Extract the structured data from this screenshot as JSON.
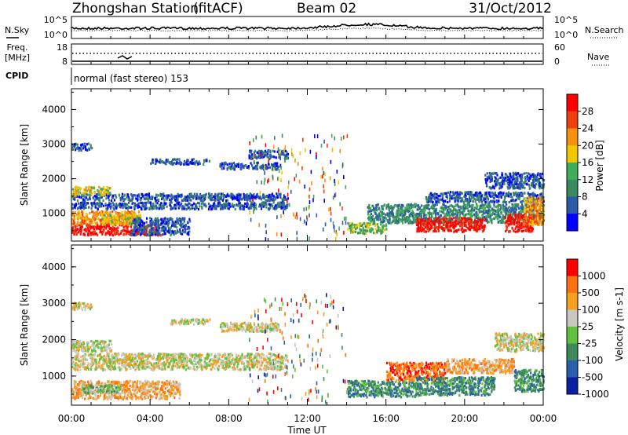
{
  "header": {
    "station": "Zhongshan Station",
    "mode": "(fitACF)",
    "beam": "Beam 02",
    "date": "31/Oct/2012"
  },
  "noise_panel": {
    "left_label": "N.Sky",
    "right_label": "N.Search",
    "left_ticks": [
      "10^5",
      "10^0"
    ],
    "right_ticks": [
      "10^5",
      "10^0"
    ]
  },
  "freq_panel": {
    "label_line1": "Freq.",
    "label_line2": "[MHz]",
    "right_label": "Nave",
    "left_ticks": [
      "18",
      "8"
    ],
    "right_ticks": [
      "60",
      "0"
    ]
  },
  "cpid": {
    "label": "CPID",
    "text": "normal (fast stereo) 153"
  },
  "colors": {
    "power_scale": [
      "#0000ff",
      "#2c5aa8",
      "#3a8a60",
      "#3fae5a",
      "#f0c800",
      "#f59010",
      "#f04010",
      "#ff0000"
    ],
    "velocity_scale": [
      "#0b1fa0",
      "#2a5fb0",
      "#3d8a5a",
      "#60c040",
      "#c8c8c0",
      "#f5a020",
      "#ff7010",
      "#ff0000"
    ]
  },
  "chart_data": [
    {
      "type": "heatmap",
      "name": "power",
      "ylabel": "Slant Range [km]",
      "yticks": [
        "4000",
        "3000",
        "2000",
        "1000"
      ],
      "ylim": [
        200,
        4600
      ],
      "colorbar_label": "Power [dB]",
      "colorbar_ticks": [
        "28",
        "24",
        "20",
        "16",
        "12",
        "8",
        "4"
      ],
      "regions": [
        {
          "t": [
            0.0,
            1.0
          ],
          "r": [
            2850,
            3050
          ],
          "level": 1
        },
        {
          "t": [
            0.0,
            4.5
          ],
          "r": [
            400,
            700
          ],
          "level": 7
        },
        {
          "t": [
            0.0,
            3.5
          ],
          "r": [
            700,
            1100
          ],
          "level": 5
        },
        {
          "t": [
            0.0,
            11.0
          ],
          "r": [
            1150,
            1350
          ],
          "level": 1
        },
        {
          "t": [
            0.0,
            11.0
          ],
          "r": [
            1400,
            1600
          ],
          "level": 1
        },
        {
          "t": [
            0.0,
            2.0
          ],
          "r": [
            1550,
            1800
          ],
          "level": 4
        },
        {
          "t": [
            1.5,
            3.5
          ],
          "r": [
            700,
            1000
          ],
          "level": 4
        },
        {
          "t": [
            3.0,
            6.0
          ],
          "r": [
            400,
            900
          ],
          "level": 1
        },
        {
          "t": [
            4.0,
            7.0
          ],
          "r": [
            2450,
            2600
          ],
          "level": 1
        },
        {
          "t": [
            7.5,
            10.5
          ],
          "r": [
            2300,
            2500
          ],
          "level": 1
        },
        {
          "t": [
            9.0,
            11.0
          ],
          "r": [
            2600,
            2850
          ],
          "level": 1
        },
        {
          "t": [
            14.0,
            16.0
          ],
          "r": [
            450,
            750
          ],
          "level": 3
        },
        {
          "t": [
            15.0,
            24.0
          ],
          "r": [
            750,
            1300
          ],
          "level": 2
        },
        {
          "t": [
            17.5,
            21.0
          ],
          "r": [
            500,
            900
          ],
          "level": 7
        },
        {
          "t": [
            18.0,
            24.0
          ],
          "r": [
            1350,
            1650
          ],
          "level": 1
        },
        {
          "t": [
            21.0,
            24.0
          ],
          "r": [
            1750,
            2200
          ],
          "level": 1
        },
        {
          "t": [
            22.0,
            23.5
          ],
          "r": [
            500,
            1000
          ],
          "level": 7
        },
        {
          "t": [
            23.0,
            24.0
          ],
          "r": [
            700,
            1500
          ],
          "level": 5
        }
      ]
    },
    {
      "type": "heatmap",
      "name": "velocity",
      "ylabel": "Slant Range [km]",
      "yticks": [
        "4000",
        "3000",
        "2000",
        "1000"
      ],
      "ylim": [
        200,
        4600
      ],
      "colorbar_label": "Velocity [m s-1]",
      "colorbar_ticks": [
        "1000",
        "500",
        "100",
        "25",
        "-25",
        "-100",
        "-500",
        "-1000"
      ],
      "xlabel": "Time UT",
      "xticks": [
        "00:00",
        "04:00",
        "08:00",
        "12:00",
        "16:00",
        "20:00",
        "00:00"
      ],
      "xlim": [
        0,
        24
      ],
      "regions": [
        {
          "t": [
            0.0,
            1.0
          ],
          "r": [
            2850,
            3050
          ],
          "level": 4
        },
        {
          "t": [
            0.0,
            11.0
          ],
          "r": [
            1200,
            1650
          ],
          "level": 4
        },
        {
          "t": [
            0.0,
            2.0
          ],
          "r": [
            1700,
            2000
          ],
          "level": 4
        },
        {
          "t": [
            0.0,
            5.5
          ],
          "r": [
            400,
            900
          ],
          "level": 5
        },
        {
          "t": [
            0.5,
            2.5
          ],
          "r": [
            550,
            800
          ],
          "level": 3
        },
        {
          "t": [
            5.0,
            7.0
          ],
          "r": [
            2450,
            2600
          ],
          "level": 4
        },
        {
          "t": [
            7.5,
            10.5
          ],
          "r": [
            2250,
            2500
          ],
          "level": 4
        },
        {
          "t": [
            14.0,
            17.5
          ],
          "r": [
            450,
            900
          ],
          "level": 2
        },
        {
          "t": [
            16.0,
            19.0
          ],
          "r": [
            900,
            1400
          ],
          "level": 6
        },
        {
          "t": [
            17.5,
            21.5
          ],
          "r": [
            500,
            1000
          ],
          "level": 2
        },
        {
          "t": [
            19.0,
            22.5
          ],
          "r": [
            1100,
            1500
          ],
          "level": 5
        },
        {
          "t": [
            21.5,
            24.0
          ],
          "r": [
            1700,
            2200
          ],
          "level": 4
        },
        {
          "t": [
            22.5,
            24.0
          ],
          "r": [
            600,
            1200
          ],
          "level": 2
        }
      ]
    }
  ]
}
